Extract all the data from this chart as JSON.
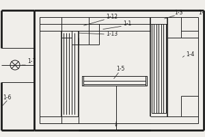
{
  "bg_color": "#f0eeea",
  "line_color": "#1a1a1a",
  "lw_main": 2.0,
  "lw_med": 1.2,
  "lw_thin": 0.7,
  "label_fontsize": 5.5
}
